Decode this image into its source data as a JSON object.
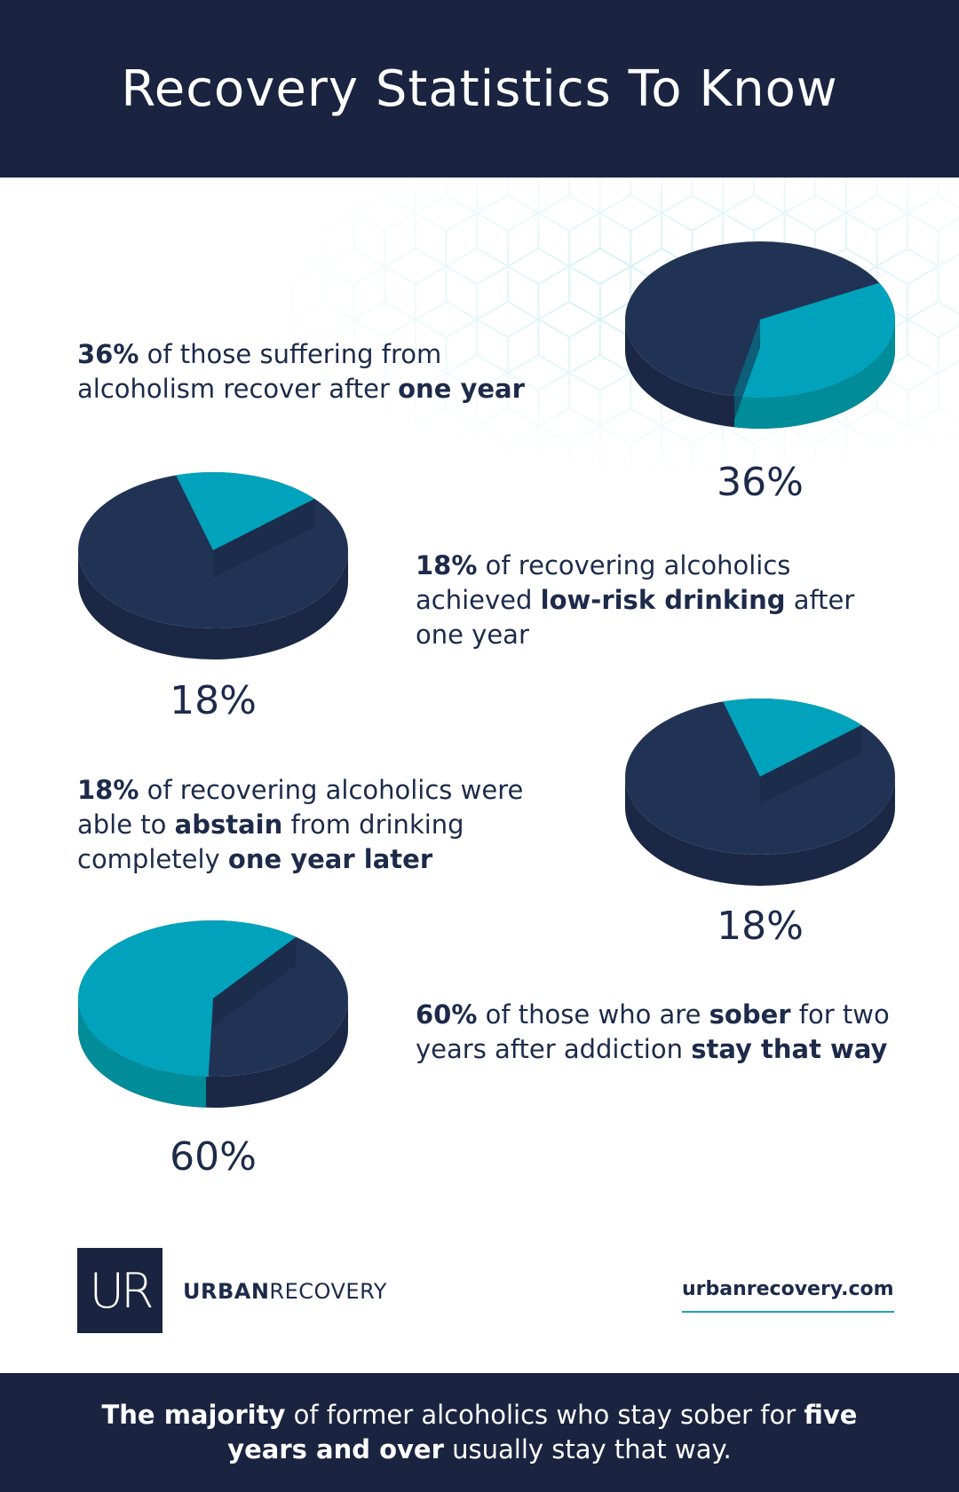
{
  "header": {
    "title": "Recovery Statistics To Know"
  },
  "stats": [
    {
      "segments": [
        {
          "text": "36%",
          "bold": true
        },
        {
          "text": " of those suffering from alcoholism recover after ",
          "bold": false
        },
        {
          "text": "one year",
          "bold": true
        }
      ],
      "percent_label": "36%",
      "value": 36
    },
    {
      "segments": [
        {
          "text": "18%",
          "bold": true
        },
        {
          "text": " of recovering alcoholics achieved ",
          "bold": false
        },
        {
          "text": "low-risk drinking",
          "bold": true
        },
        {
          "text": " after one year",
          "bold": false
        }
      ],
      "percent_label": "18%",
      "value": 18
    },
    {
      "segments": [
        {
          "text": "18%",
          "bold": true
        },
        {
          "text": " of recovering alcoholics were able to ",
          "bold": false
        },
        {
          "text": "abstain",
          "bold": true
        },
        {
          "text": " from drinking completely ",
          "bold": false
        },
        {
          "text": "one year later",
          "bold": true
        }
      ],
      "percent_label": "18%",
      "value": 18
    },
    {
      "segments": [
        {
          "text": "60%",
          "bold": true
        },
        {
          "text": " of those who are ",
          "bold": false
        },
        {
          "text": "sober",
          "bold": true
        },
        {
          "text": " for two years after addiction ",
          "bold": false
        },
        {
          "text": "stay that way",
          "bold": true
        }
      ],
      "percent_label": "60%",
      "value": 60
    }
  ],
  "brand": {
    "bold": "URBAN",
    "regular": "RECOVERY",
    "logo_letters": "UR"
  },
  "website": "urbanrecovery.com",
  "footer": {
    "segments": [
      {
        "text": "The majority",
        "bold": true
      },
      {
        "text": " of former alcoholics who stay sober for ",
        "bold": false
      },
      {
        "text": "five years and over",
        "bold": true
      },
      {
        "text": " usually stay that way.",
        "bold": false
      }
    ]
  },
  "colors": {
    "navy": "#1a2440",
    "pie_dark": "#213355",
    "pie_dark_side": "#1a2846",
    "accent": "#00a3bb",
    "accent_side": "#008c99",
    "pattern": "#cdeef2"
  }
}
